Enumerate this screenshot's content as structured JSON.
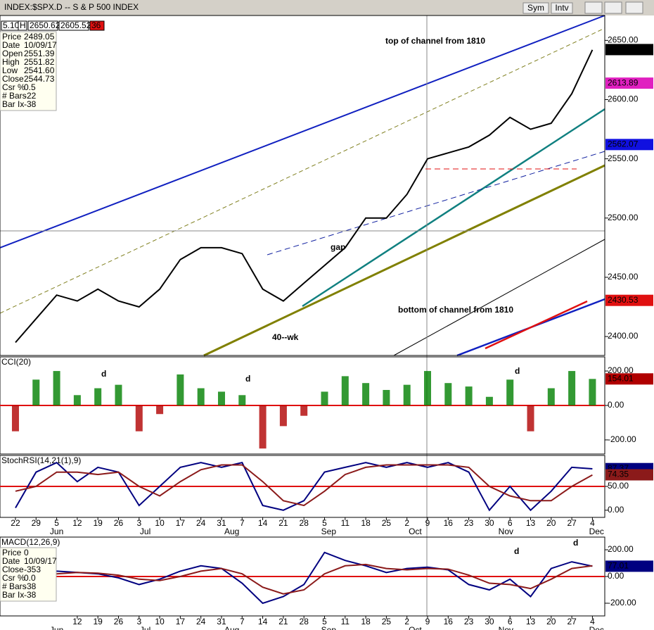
{
  "window": {
    "title": "INDEX:$SPX.D -- S & P 500 INDEX",
    "buttons": [
      "Sym",
      "Intv"
    ]
  },
  "header_strip": [
    "5.10",
    "H",
    "2650.62",
    "2605.52",
    "36"
  ],
  "info": [
    [
      "Price",
      "2489.05"
    ],
    [
      "Date",
      "10/09/17"
    ],
    [
      "Open",
      "2551.39"
    ],
    [
      "High",
      "2551.82"
    ],
    [
      "Low",
      "2541.60"
    ],
    [
      "Close",
      "2544.73"
    ],
    [
      "Csr %",
      "0.5"
    ],
    [
      "# Bars",
      "-22"
    ],
    [
      "Bar Ix",
      "-38"
    ]
  ],
  "macd_info": [
    [
      "Price",
      "0"
    ],
    [
      "Date",
      "10/09/17"
    ],
    [
      "Close",
      "-353"
    ],
    [
      "Csr %",
      "0.0"
    ],
    [
      "# Bars",
      "-38"
    ],
    [
      "Bar Ix",
      "-38"
    ]
  ],
  "chart_data": [
    {
      "type": "line",
      "annotations": [
        "top of channel from 1810",
        "bottom of channel from 1810",
        "40--wk",
        "gap"
      ],
      "x": [
        0,
        1,
        2,
        3,
        4,
        5,
        6,
        7,
        8,
        9,
        10,
        11,
        12,
        13,
        14,
        15,
        16,
        17,
        18,
        19,
        20,
        21,
        22,
        23,
        24,
        25,
        26,
        27,
        28
      ],
      "series": [
        {
          "color": "#000000",
          "values": [
            2395,
            2415,
            2435,
            2430,
            2440,
            2430,
            2425,
            2440,
            2465,
            2475,
            2475,
            2470,
            2440,
            2430,
            2445,
            2460,
            2475,
            2500,
            2500,
            2520,
            2550,
            2555,
            2560,
            2570,
            2585,
            2575,
            2580,
            2605,
            2642
          ]
        }
      ],
      "xlim": [
        -0.75,
        28.6
      ],
      "ylim": [
        2384,
        2671
      ],
      "yticks": [
        {
          "value": 2400,
          "label": "2400.00"
        },
        {
          "value": 2450,
          "label": "2450.00"
        },
        {
          "value": 2500,
          "label": "2500.00"
        },
        {
          "value": 2550,
          "label": "2550.00"
        },
        {
          "value": 2600,
          "label": "2600.00"
        },
        {
          "value": 2650,
          "label": "2650.00"
        }
      ],
      "markers": [
        {
          "value": 2642.22,
          "color": "#000000"
        },
        {
          "value": 2613.89,
          "color": "#e020c0"
        },
        {
          "value": 2562.07,
          "color": "#1010e0"
        },
        {
          "value": 2430.53,
          "color": "#e01010"
        }
      ]
    },
    {
      "type": "bar",
      "title": "CCI(20)",
      "annotations": [
        "d",
        "d",
        "d"
      ],
      "x": [
        0,
        1,
        2,
        3,
        4,
        5,
        6,
        7,
        8,
        9,
        10,
        11,
        12,
        13,
        14,
        15,
        16,
        17,
        18,
        19,
        20,
        21,
        22,
        23,
        24,
        25,
        26,
        27,
        28
      ],
      "series": [
        {
          "color": "#008000",
          "color_negative": "#b00000",
          "values": [
            -150,
            150,
            200,
            60,
            100,
            120,
            -150,
            -50,
            180,
            100,
            80,
            60,
            -250,
            -120,
            -60,
            80,
            170,
            130,
            90,
            120,
            200,
            130,
            110,
            50,
            150,
            -150,
            100,
            200,
            154
          ]
        }
      ],
      "xlim": [
        -0.75,
        28.6
      ],
      "ylim": [
        -282,
        282
      ],
      "reference": 0,
      "yticks": [
        {
          "value": -200,
          "label": "-200.00"
        },
        {
          "value": 0,
          "label": "0.00"
        },
        {
          "value": 200,
          "label": "200.00"
        }
      ],
      "markers": [
        {
          "value": 154.01,
          "color": "#b00000"
        }
      ]
    },
    {
      "type": "line",
      "title": "StochRSI(14,21(1),9)",
      "x": [
        0,
        1,
        2,
        3,
        4,
        5,
        6,
        7,
        8,
        9,
        10,
        11,
        12,
        13,
        14,
        15,
        16,
        17,
        18,
        19,
        20,
        21,
        22,
        23,
        24,
        25,
        26,
        27,
        28
      ],
      "series": [
        {
          "color": "#000080",
          "values": [
            5,
            80,
            100,
            60,
            90,
            80,
            10,
            50,
            90,
            100,
            90,
            100,
            10,
            0,
            20,
            80,
            90,
            100,
            90,
            100,
            90,
            100,
            80,
            0,
            50,
            0,
            40,
            90,
            87
          ]
        },
        {
          "color": "#8b1a1a",
          "values": [
            40,
            50,
            80,
            80,
            75,
            80,
            50,
            30,
            60,
            85,
            95,
            95,
            60,
            20,
            10,
            40,
            75,
            90,
            95,
            95,
            95,
            95,
            90,
            50,
            30,
            20,
            20,
            50,
            74
          ]
        }
      ],
      "xlim": [
        -0.75,
        28.6
      ],
      "ylim": [
        -15,
        115
      ],
      "reference": 50,
      "yticks": [
        {
          "value": 0,
          "label": "0.00"
        },
        {
          "value": 50,
          "label": "50.00"
        }
      ],
      "markers": [
        {
          "value": 87.37,
          "color": "#000080"
        },
        {
          "value": 74.35,
          "color": "#8b1a1a"
        }
      ],
      "xticks": [
        {
          "value": 0,
          "label": "22"
        },
        {
          "value": 1,
          "label": "29"
        },
        {
          "value": 2,
          "label": "5"
        },
        {
          "value": 3,
          "label": "12"
        },
        {
          "value": 4,
          "label": "19"
        },
        {
          "value": 5,
          "label": "26"
        },
        {
          "value": 6,
          "label": "3"
        },
        {
          "value": 7,
          "label": "10"
        },
        {
          "value": 8,
          "label": "17"
        },
        {
          "value": 9,
          "label": "24"
        },
        {
          "value": 10,
          "label": "31"
        },
        {
          "value": 11,
          "label": "7"
        },
        {
          "value": 12,
          "label": "14"
        },
        {
          "value": 13,
          "label": "21"
        },
        {
          "value": 14,
          "label": "28"
        },
        {
          "value": 15,
          "label": "5"
        },
        {
          "value": 16,
          "label": "11"
        },
        {
          "value": 17,
          "label": "18"
        },
        {
          "value": 18,
          "label": "25"
        },
        {
          "value": 19,
          "label": "2"
        },
        {
          "value": 20,
          "label": "9"
        },
        {
          "value": 21,
          "label": "16"
        },
        {
          "value": 22,
          "label": "23"
        },
        {
          "value": 23,
          "label": "30"
        },
        {
          "value": 24,
          "label": "6"
        },
        {
          "value": 25,
          "label": "13"
        },
        {
          "value": 26,
          "label": "20"
        },
        {
          "value": 27,
          "label": "27"
        },
        {
          "value": 28,
          "label": "4"
        }
      ],
      "months": [
        {
          "value": 2,
          "label": "Jun"
        },
        {
          "value": 6.3,
          "label": "Jul"
        },
        {
          "value": 10.5,
          "label": "Aug"
        },
        {
          "value": 15.2,
          "label": "Sep"
        },
        {
          "value": 19.4,
          "label": "Oct"
        },
        {
          "value": 23.8,
          "label": "Nov"
        },
        {
          "value": 28.2,
          "label": "Dec"
        }
      ]
    },
    {
      "type": "line",
      "title": "MACD(12,26,9)",
      "annotations": [
        "d",
        "d"
      ],
      "x": [
        0,
        1,
        2,
        3,
        4,
        5,
        6,
        7,
        8,
        9,
        10,
        11,
        12,
        13,
        14,
        15,
        16,
        17,
        18,
        19,
        20,
        21,
        22,
        23,
        24,
        25,
        26,
        27,
        28
      ],
      "series": [
        {
          "color": "#000080",
          "values": [
            0,
            20,
            40,
            30,
            20,
            -10,
            -60,
            -20,
            40,
            80,
            60,
            -50,
            -200,
            -150,
            -60,
            180,
            120,
            80,
            30,
            60,
            70,
            50,
            -60,
            -100,
            -20,
            -150,
            60,
            110,
            77
          ]
        },
        {
          "color": "#8b1a1a",
          "values": [
            10,
            10,
            20,
            30,
            25,
            10,
            -20,
            -30,
            0,
            40,
            60,
            20,
            -80,
            -130,
            -100,
            20,
            80,
            90,
            60,
            50,
            60,
            55,
            10,
            -50,
            -60,
            -90,
            -20,
            60,
            80
          ]
        }
      ],
      "xlim": [
        -0.75,
        28.6
      ],
      "ylim": [
        -295,
        295
      ],
      "reference": 0,
      "yticks": [
        {
          "value": -200,
          "label": "-200.00"
        },
        {
          "value": 0,
          "label": "0.00"
        },
        {
          "value": 200,
          "label": "200.00"
        }
      ],
      "markers": [
        {
          "value": 77.01,
          "color": "#000080"
        }
      ],
      "xticks": [
        {
          "value": 3,
          "label": "12"
        },
        {
          "value": 4,
          "label": "19"
        },
        {
          "value": 5,
          "label": "26"
        },
        {
          "value": 6,
          "label": "3"
        },
        {
          "value": 7,
          "label": "10"
        },
        {
          "value": 8,
          "label": "17"
        },
        {
          "value": 9,
          "label": "24"
        },
        {
          "value": 10,
          "label": "31"
        },
        {
          "value": 11,
          "label": "7"
        },
        {
          "value": 12,
          "label": "14"
        },
        {
          "value": 13,
          "label": "21"
        },
        {
          "value": 14,
          "label": "28"
        },
        {
          "value": 15,
          "label": "5"
        },
        {
          "value": 16,
          "label": "11"
        },
        {
          "value": 17,
          "label": "18"
        },
        {
          "value": 18,
          "label": "25"
        },
        {
          "value": 19,
          "label": "2"
        },
        {
          "value": 20,
          "label": "9"
        },
        {
          "value": 21,
          "label": "16"
        },
        {
          "value": 22,
          "label": "23"
        },
        {
          "value": 23,
          "label": "30"
        },
        {
          "value": 24,
          "label": "6"
        },
        {
          "value": 25,
          "label": "13"
        },
        {
          "value": 26,
          "label": "20"
        },
        {
          "value": 27,
          "label": "27"
        },
        {
          "value": 28,
          "label": "4"
        }
      ],
      "months": [
        {
          "value": 2,
          "label": "Jun"
        },
        {
          "value": 6.3,
          "label": "Jul"
        },
        {
          "value": 10.5,
          "label": "Aug"
        },
        {
          "value": 15.2,
          "label": "Sep"
        },
        {
          "value": 19.4,
          "label": "Oct"
        },
        {
          "value": 23.8,
          "label": "Nov"
        },
        {
          "value": 28.2,
          "label": "Dec"
        }
      ]
    }
  ]
}
